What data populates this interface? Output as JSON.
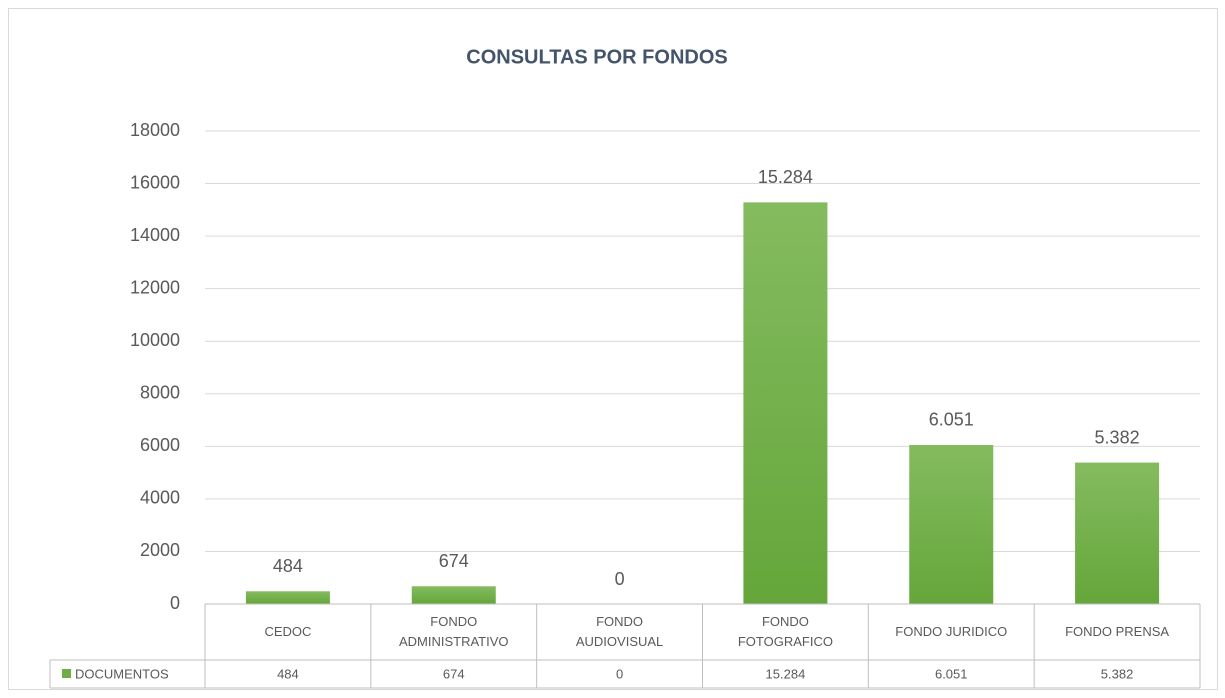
{
  "chart_data": {
    "type": "bar",
    "title": "CONSULTAS POR FONDOS",
    "categories": [
      "CEDOC",
      "FONDO\nADMINISTRATIVO",
      "FONDO\nAUDIOVISUAL",
      "FONDO\nFOTOGRAFICO",
      "FONDO JURIDICO",
      "FONDO PRENSA"
    ],
    "series": [
      {
        "name": "DOCUMENTOS",
        "color": "#70ad47",
        "values": [
          484,
          674,
          0,
          15284,
          6051,
          5382
        ],
        "value_labels": [
          "484",
          "674",
          "0",
          "15.284",
          "6.051",
          "5.382"
        ]
      }
    ],
    "ylim": [
      0,
      18000
    ],
    "yticks": [
      0,
      2000,
      4000,
      6000,
      8000,
      10000,
      12000,
      14000,
      16000,
      18000
    ],
    "grid": true,
    "data_table": true
  }
}
